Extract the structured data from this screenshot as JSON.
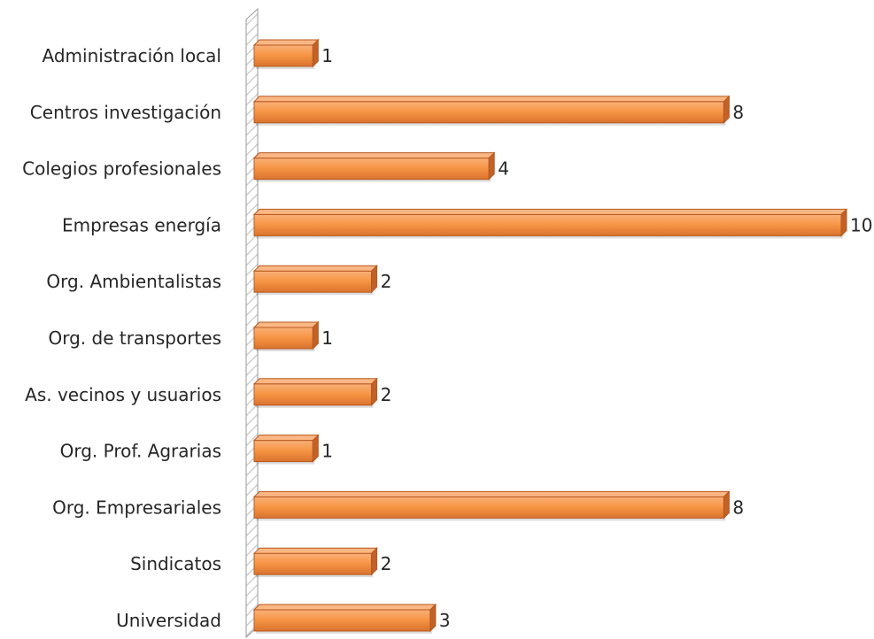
{
  "chart_data": {
    "type": "bar",
    "orientation": "horizontal",
    "categories": [
      "Administración local",
      "Centros investigación",
      "Colegios profesionales",
      "Empresas energía",
      "Org. Ambientalistas",
      "Org. de transportes",
      "As. vecinos y usuarios",
      "Org. Prof. Agrarias",
      "Org. Empresariales",
      "Sindicatos",
      "Universidad"
    ],
    "values": [
      1,
      8,
      4,
      10,
      2,
      1,
      2,
      1,
      8,
      2,
      3
    ],
    "data_labels": [
      "1",
      "8",
      "4",
      "10",
      "2",
      "1",
      "2",
      "1",
      "8",
      "2",
      "3"
    ],
    "title": "",
    "xlabel": "",
    "ylabel": "",
    "xlim": [
      0,
      10
    ],
    "grid": false,
    "legend": "none",
    "colors": {
      "bar": "#F79646",
      "bar_dark": "#C0622A",
      "bar_edge": "#B8581E",
      "axis_wall": "#BFBFBF"
    }
  }
}
